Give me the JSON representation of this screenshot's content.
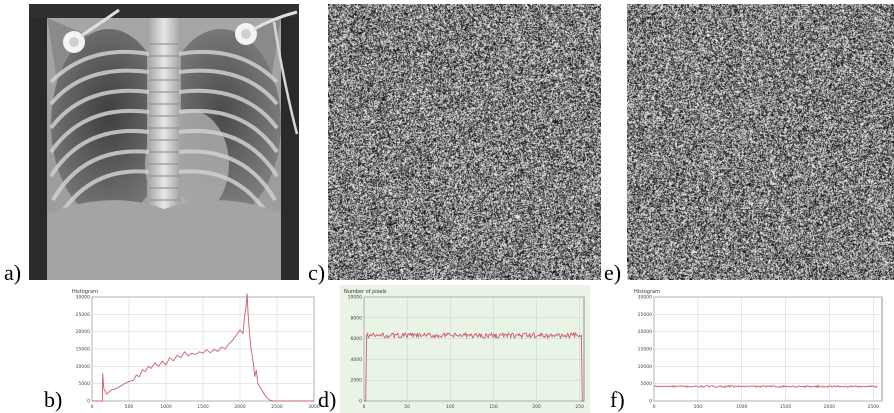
{
  "figure": {
    "labels": {
      "a": "a)",
      "b": "b)",
      "c": "c)",
      "d": "d)",
      "e": "e)",
      "f": "f)"
    }
  },
  "chart_data": [
    {
      "panel": "b",
      "type": "line",
      "title": "Histogram",
      "x_ticks": [
        "0",
        "500",
        "1000",
        "1500",
        "2000",
        "2500",
        "3000"
      ],
      "y_ticks": [
        "0",
        "5000",
        "10000",
        "15000",
        "20000",
        "25000",
        "30000"
      ],
      "xlim": [
        0,
        3000
      ],
      "ylim": [
        0,
        30000
      ],
      "color": "#c9606a",
      "grid": true,
      "points": [
        [
          0,
          0
        ],
        [
          140,
          0
        ],
        [
          145,
          8000
        ],
        [
          160,
          3500
        ],
        [
          200,
          2000
        ],
        [
          260,
          3200
        ],
        [
          320,
          3500
        ],
        [
          380,
          4200
        ],
        [
          440,
          5000
        ],
        [
          500,
          5600
        ],
        [
          560,
          6000
        ],
        [
          600,
          7500
        ],
        [
          640,
          7000
        ],
        [
          680,
          9000
        ],
        [
          720,
          8500
        ],
        [
          760,
          10000
        ],
        [
          800,
          9400
        ],
        [
          850,
          11000
        ],
        [
          900,
          10000
        ],
        [
          950,
          11500
        ],
        [
          1000,
          10400
        ],
        [
          1050,
          12500
        ],
        [
          1100,
          11600
        ],
        [
          1150,
          13200
        ],
        [
          1200,
          12500
        ],
        [
          1250,
          14200
        ],
        [
          1300,
          13000
        ],
        [
          1350,
          13800
        ],
        [
          1400,
          13400
        ],
        [
          1450,
          14200
        ],
        [
          1500,
          13800
        ],
        [
          1550,
          14800
        ],
        [
          1600,
          13900
        ],
        [
          1650,
          14900
        ],
        [
          1700,
          14300
        ],
        [
          1750,
          15600
        ],
        [
          1800,
          15000
        ],
        [
          1850,
          16500
        ],
        [
          1900,
          17500
        ],
        [
          1950,
          19000
        ],
        [
          2000,
          20500
        ],
        [
          2040,
          19500
        ],
        [
          2060,
          24000
        ],
        [
          2080,
          27000
        ],
        [
          2095,
          31000
        ],
        [
          2110,
          25000
        ],
        [
          2130,
          19000
        ],
        [
          2150,
          15000
        ],
        [
          2180,
          11000
        ],
        [
          2200,
          7000
        ],
        [
          2220,
          9000
        ],
        [
          2240,
          5000
        ],
        [
          2270,
          4000
        ],
        [
          2300,
          3000
        ],
        [
          2350,
          1200
        ],
        [
          2400,
          300
        ],
        [
          2450,
          0
        ],
        [
          3000,
          0
        ]
      ]
    },
    {
      "panel": "d",
      "type": "line",
      "title": "Number of pixels",
      "x_ticks": [
        "0",
        "50",
        "100",
        "150",
        "200",
        "250"
      ],
      "y_ticks": [
        "0",
        "2000",
        "4000",
        "6000",
        "8000",
        "10000"
      ],
      "xlim": [
        0,
        255
      ],
      "ylim": [
        0,
        10000
      ],
      "color": "#c9606a",
      "background": "#e9f3e6",
      "grid": true,
      "base_value": 6300,
      "noise_amplitude": 250,
      "edge_spike": true
    },
    {
      "panel": "f",
      "type": "line",
      "title": "Histogram",
      "x_ticks": [
        "0",
        "500",
        "1000",
        "1500",
        "2000",
        "2500"
      ],
      "y_ticks": [
        "0",
        "5000",
        "10000",
        "15000",
        "20000",
        "25000",
        "30000"
      ],
      "xlim": [
        0,
        2600
      ],
      "ylim": [
        0,
        30000
      ],
      "color": "#c9606a",
      "grid": true,
      "base_value": 4200,
      "noise_amplitude": 250
    }
  ]
}
